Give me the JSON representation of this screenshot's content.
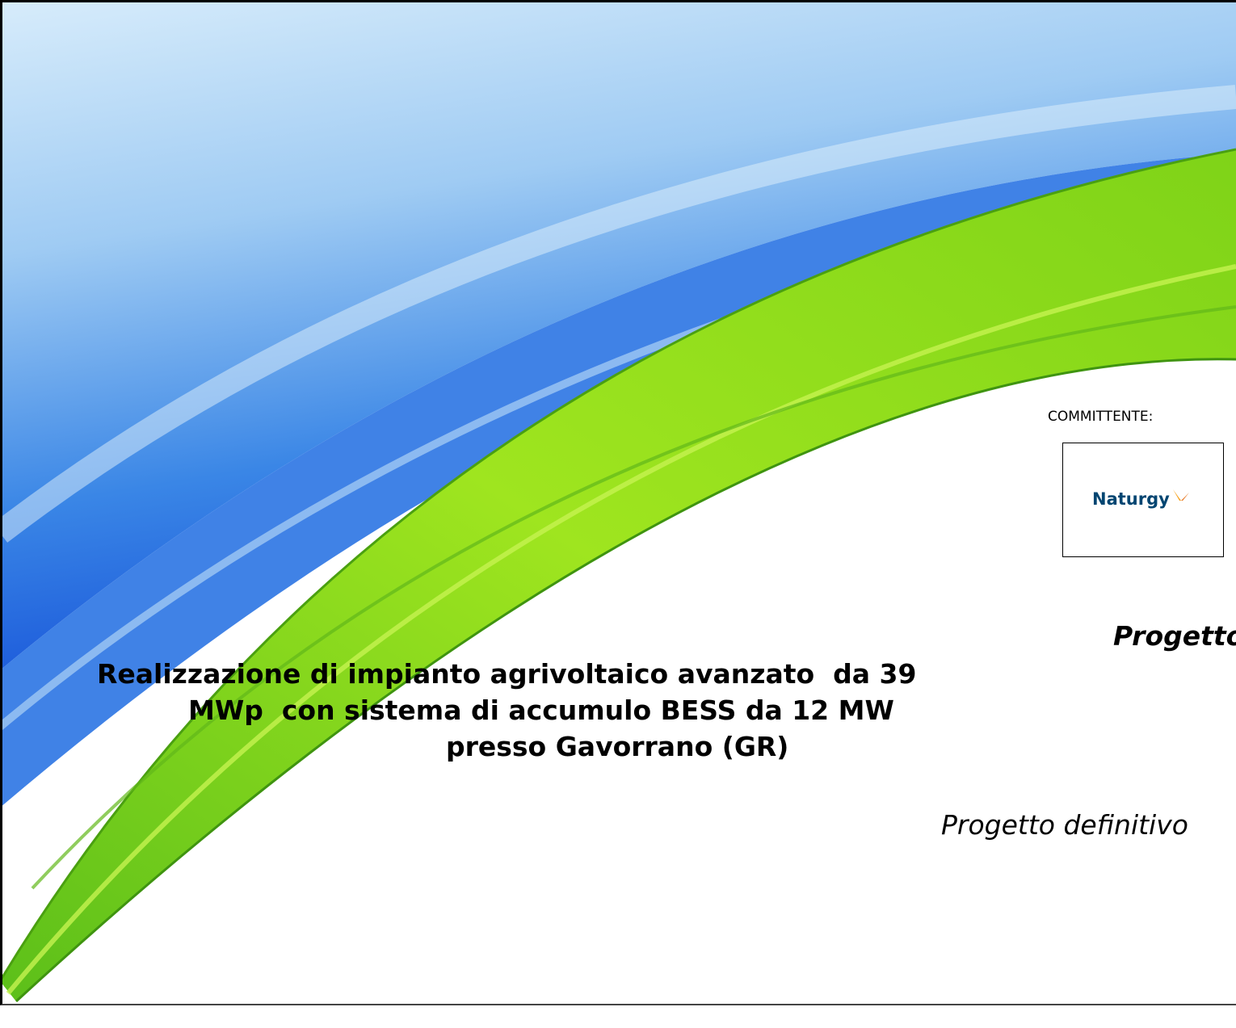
{
  "committente": {
    "label": "COMMITTENTE:",
    "logo_text": "Naturgy"
  },
  "title": {
    "heading": "Progetto",
    "lines": [
      "Realizzazione di impianto agrivoltaico avanzato  da 39",
      "MWp  con sistema di accumulo BESS da 12 MW",
      "presso Gavorrano (GR)"
    ]
  },
  "subtitle": "Progetto definitivo"
}
